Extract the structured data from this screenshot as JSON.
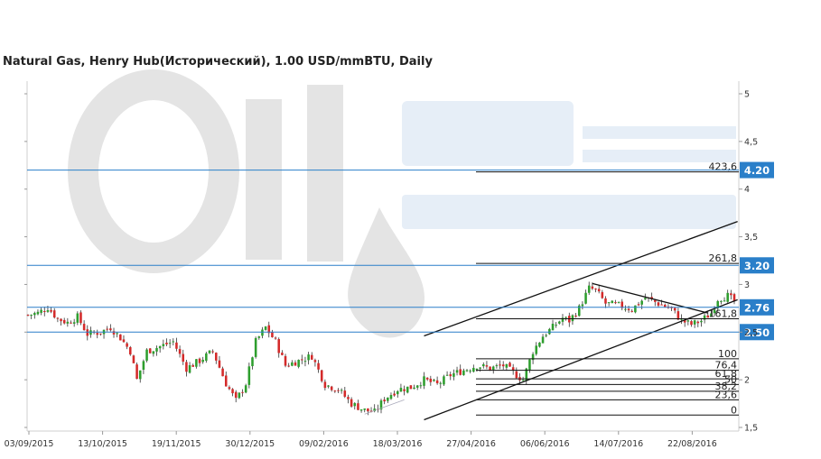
{
  "title": "Natural Gas, Henry Hub(Исторический), 1.00 USD/mmBTU, Daily",
  "colors": {
    "up": "#2e9e2e",
    "down": "#d42a2a",
    "level": "#2a7fc9",
    "badge": "#2a7fc9",
    "watermark": "#e4e4e4",
    "watermark_blue": "#e6eef7"
  },
  "watermark": "Oil Stat",
  "chart_data": {
    "type": "candlestick",
    "ylim": [
      1.5,
      5.1
    ],
    "y_ticks": [
      "5",
      "4,5",
      "4",
      "3,5",
      "3",
      "2,5",
      "2",
      "1,5"
    ],
    "y_tick_values": [
      5,
      4.5,
      4,
      3.5,
      3,
      2.5,
      2,
      1.5
    ],
    "x_ticks": [
      "03/09/2015",
      "13/10/2015",
      "19/11/2015",
      "30/12/2015",
      "09/02/2016",
      "18/03/2016",
      "27/04/2016",
      "06/06/2016",
      "14/07/2016",
      "22/08/2016"
    ],
    "levels": [
      {
        "value": 4.2,
        "label": "4.20"
      },
      {
        "value": 3.2,
        "label": "3.20"
      },
      {
        "value": 2.76,
        "label": "2.76"
      },
      {
        "value": 2.5,
        "label": "2.50"
      }
    ],
    "fibonacci": [
      {
        "value": 4.18,
        "label": "423,6"
      },
      {
        "value": 3.22,
        "label": "261,8"
      },
      {
        "value": 2.64,
        "label": "161,8"
      },
      {
        "value": 2.22,
        "label": "100"
      },
      {
        "value": 2.1,
        "label": "76,4"
      },
      {
        "value": 2.01,
        "label": "61,8"
      },
      {
        "value": 1.95,
        "label": "50"
      },
      {
        "value": 1.88,
        "label": "38,2"
      },
      {
        "value": 1.79,
        "label": "23,6"
      },
      {
        "value": 1.63,
        "label": "0"
      }
    ],
    "price_path": [
      [
        0,
        2.68
      ],
      [
        3,
        2.7
      ],
      [
        6,
        2.76
      ],
      [
        9,
        2.64
      ],
      [
        12,
        2.6
      ],
      [
        15,
        2.66
      ],
      [
        18,
        2.48
      ],
      [
        22,
        2.5
      ],
      [
        25,
        2.55
      ],
      [
        28,
        2.44
      ],
      [
        31,
        2.3
      ],
      [
        33,
        2.0
      ],
      [
        36,
        2.3
      ],
      [
        40,
        2.35
      ],
      [
        44,
        2.4
      ],
      [
        48,
        2.12
      ],
      [
        52,
        2.2
      ],
      [
        56,
        2.3
      ],
      [
        60,
        1.96
      ],
      [
        63,
        1.78
      ],
      [
        66,
        1.96
      ],
      [
        69,
        2.4
      ],
      [
        72,
        2.55
      ],
      [
        75,
        2.4
      ],
      [
        78,
        2.15
      ],
      [
        82,
        2.2
      ],
      [
        86,
        2.25
      ],
      [
        90,
        1.95
      ],
      [
        94,
        1.9
      ],
      [
        98,
        1.75
      ],
      [
        102,
        1.68
      ],
      [
        105,
        1.66
      ],
      [
        108,
        1.8
      ],
      [
        112,
        1.9
      ],
      [
        116,
        1.92
      ],
      [
        120,
        2.0
      ],
      [
        124,
        1.95
      ],
      [
        128,
        2.05
      ],
      [
        132,
        2.1
      ],
      [
        136,
        2.15
      ],
      [
        140,
        2.12
      ],
      [
        144,
        2.15
      ],
      [
        148,
        2.05
      ],
      [
        150,
        2.0
      ],
      [
        153,
        2.3
      ],
      [
        156,
        2.46
      ],
      [
        159,
        2.55
      ],
      [
        162,
        2.65
      ],
      [
        164,
        2.62
      ],
      [
        167,
        2.75
      ],
      [
        170,
        2.96
      ],
      [
        172,
        2.94
      ],
      [
        175,
        2.8
      ],
      [
        179,
        2.78
      ],
      [
        183,
        2.74
      ],
      [
        187,
        2.86
      ],
      [
        191,
        2.8
      ],
      [
        195,
        2.74
      ],
      [
        198,
        2.62
      ],
      [
        201,
        2.58
      ],
      [
        204,
        2.62
      ],
      [
        207,
        2.7
      ],
      [
        209,
        2.85
      ],
      [
        212,
        2.88
      ],
      [
        214,
        2.82
      ]
    ],
    "n_bars": 215,
    "trendlines": [
      {
        "x1": 120,
        "y1": 2.46,
        "x2": 215,
        "y2": 3.66
      },
      {
        "x1": 120,
        "y1": 1.58,
        "x2": 215,
        "y2": 2.84
      },
      {
        "x1": 171,
        "y1": 3.01,
        "x2": 206,
        "y2": 2.7
      },
      {
        "x1": 102,
        "y1": 1.64,
        "x2": 114,
        "y2": 1.79
      }
    ]
  }
}
